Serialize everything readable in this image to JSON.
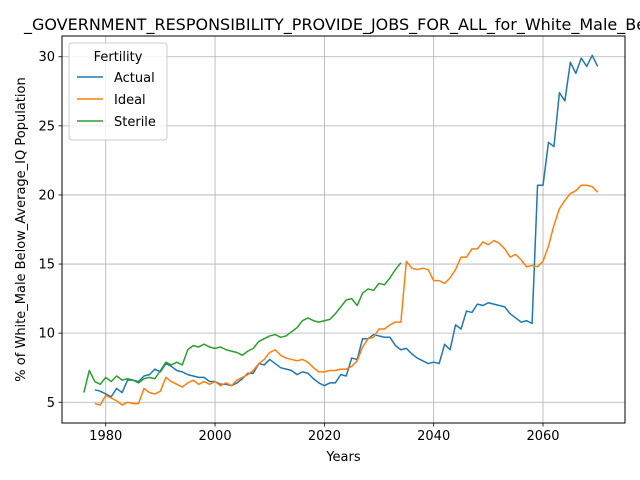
{
  "chart_data": {
    "type": "line",
    "title": "_GOVERNMENT_RESPONSIBILITY_PROVIDE_JOBS_FOR_ALL_for_White_Male_Be",
    "xlabel": "Years",
    "ylabel": "% of White_Male Below_Average_IQ Population",
    "xlim": [
      1972,
      2075
    ],
    "ylim": [
      3.5,
      31.5
    ],
    "xticks": [
      1980,
      2000,
      2020,
      2040,
      2060
    ],
    "yticks": [
      5,
      10,
      15,
      20,
      25,
      30
    ],
    "grid": true,
    "legend": {
      "title": "Fertility",
      "placement": "top-left"
    },
    "series": [
      {
        "name": "Actual",
        "color": "#1f77b4",
        "x": [
          1978,
          1979,
          1980,
          1981,
          1982,
          1983,
          1984,
          1985,
          1986,
          1987,
          1988,
          1989,
          1990,
          1991,
          1992,
          1993,
          1994,
          1995,
          1996,
          1997,
          1998,
          1999,
          2000,
          2001,
          2002,
          2003,
          2004,
          2005,
          2006,
          2007,
          2008,
          2009,
          2010,
          2011,
          2012,
          2013,
          2014,
          2015,
          2016,
          2017,
          2018,
          2019,
          2020,
          2021,
          2022,
          2023,
          2024,
          2025,
          2026,
          2027,
          2028,
          2029,
          2030,
          2031,
          2032,
          2033,
          2034,
          2035,
          2036,
          2037,
          2038,
          2039,
          2040,
          2041,
          2042,
          2043,
          2044,
          2045,
          2046,
          2047,
          2048,
          2049,
          2050,
          2051,
          2052,
          2053,
          2054,
          2055,
          2056,
          2057,
          2058,
          2059,
          2060,
          2061,
          2062,
          2063,
          2064,
          2065,
          2066,
          2067,
          2068,
          2069,
          2070
        ],
        "y": [
          5.9,
          5.8,
          5.6,
          5.4,
          6.0,
          5.7,
          6.6,
          6.6,
          6.5,
          6.9,
          7.0,
          7.4,
          7.2,
          7.8,
          7.6,
          7.3,
          7.2,
          7.0,
          6.9,
          6.8,
          6.8,
          6.5,
          6.5,
          6.3,
          6.3,
          6.2,
          6.4,
          6.7,
          7.1,
          7.1,
          7.8,
          7.7,
          8.1,
          7.8,
          7.5,
          7.4,
          7.3,
          7.0,
          7.2,
          7.1,
          6.7,
          6.4,
          6.2,
          6.4,
          6.4,
          7.0,
          6.9,
          8.2,
          8.1,
          9.6,
          9.6,
          9.9,
          9.8,
          9.7,
          9.7,
          9.1,
          8.8,
          8.9,
          8.5,
          8.2,
          8.0,
          7.8,
          7.9,
          7.8,
          9.2,
          8.8,
          10.6,
          10.3,
          11.6,
          11.5,
          12.1,
          12.0,
          12.2,
          12.1,
          12.0,
          11.9,
          11.4,
          11.1,
          10.8,
          10.9,
          10.7,
          20.7,
          20.7,
          23.8,
          23.5,
          27.4,
          26.8,
          29.6,
          28.8,
          29.9,
          29.3,
          30.1,
          29.3
        ]
      },
      {
        "name": "Ideal",
        "color": "#ff7f0e",
        "x": [
          1978,
          1979,
          1980,
          1981,
          1982,
          1983,
          1984,
          1985,
          1986,
          1987,
          1988,
          1989,
          1990,
          1991,
          1992,
          1993,
          1994,
          1995,
          1996,
          1997,
          1998,
          1999,
          2000,
          2001,
          2002,
          2003,
          2004,
          2005,
          2006,
          2007,
          2008,
          2009,
          2010,
          2011,
          2012,
          2013,
          2014,
          2015,
          2016,
          2017,
          2018,
          2019,
          2020,
          2021,
          2022,
          2023,
          2024,
          2025,
          2026,
          2027,
          2028,
          2029,
          2030,
          2031,
          2032,
          2033,
          2034,
          2035,
          2036,
          2037,
          2038,
          2039,
          2040,
          2041,
          2042,
          2043,
          2044,
          2045,
          2046,
          2047,
          2048,
          2049,
          2050,
          2051,
          2052,
          2053,
          2054,
          2055,
          2056,
          2057,
          2058,
          2059,
          2060,
          2061,
          2062,
          2063,
          2064,
          2065,
          2066,
          2067,
          2068,
          2069,
          2070
        ],
        "y": [
          4.9,
          4.8,
          5.5,
          5.3,
          5.1,
          4.8,
          5.0,
          4.9,
          4.9,
          6.0,
          5.7,
          5.6,
          5.8,
          6.8,
          6.5,
          6.3,
          6.1,
          6.4,
          6.6,
          6.3,
          6.5,
          6.3,
          6.5,
          6.2,
          6.4,
          6.2,
          6.6,
          6.8,
          7.0,
          7.3,
          7.8,
          8.1,
          8.6,
          8.8,
          8.4,
          8.2,
          8.1,
          8.0,
          8.1,
          7.9,
          7.5,
          7.2,
          7.2,
          7.3,
          7.3,
          7.4,
          7.4,
          7.6,
          8.0,
          9.0,
          9.6,
          9.7,
          10.3,
          10.3,
          10.6,
          10.8,
          10.8,
          15.2,
          14.7,
          14.6,
          14.7,
          14.6,
          13.8,
          13.8,
          13.6,
          14.0,
          14.6,
          15.5,
          15.5,
          16.1,
          16.1,
          16.6,
          16.4,
          16.7,
          16.5,
          16.1,
          15.5,
          15.7,
          15.3,
          14.8,
          14.9,
          14.8,
          15.2,
          16.3,
          17.8,
          19.0,
          19.6,
          20.1,
          20.3,
          20.7,
          20.7,
          20.6,
          20.2
        ]
      },
      {
        "name": "Sterile",
        "color": "#2ca02c",
        "x": [
          1976,
          1977,
          1978,
          1979,
          1980,
          1981,
          1982,
          1983,
          1984,
          1985,
          1986,
          1987,
          1988,
          1989,
          1990,
          1991,
          1992,
          1993,
          1994,
          1995,
          1996,
          1997,
          1998,
          1999,
          2000,
          2001,
          2002,
          2003,
          2004,
          2005,
          2006,
          2007,
          2008,
          2009,
          2010,
          2011,
          2012,
          2013,
          2014,
          2015,
          2016,
          2017,
          2018,
          2019,
          2020,
          2021,
          2022,
          2023,
          2024,
          2025,
          2026,
          2027,
          2028,
          2029,
          2030,
          2031,
          2032,
          2033,
          2034
        ],
        "y": [
          5.7,
          7.3,
          6.5,
          6.3,
          6.8,
          6.5,
          6.9,
          6.6,
          6.7,
          6.6,
          6.4,
          6.7,
          6.8,
          6.7,
          7.3,
          7.9,
          7.7,
          7.9,
          7.7,
          8.8,
          9.1,
          9.0,
          9.2,
          9.0,
          8.9,
          9.0,
          8.8,
          8.7,
          8.6,
          8.4,
          8.7,
          8.9,
          9.4,
          9.6,
          9.8,
          9.9,
          9.7,
          9.8,
          10.1,
          10.4,
          10.9,
          11.1,
          10.9,
          10.8,
          10.9,
          11.0,
          11.4,
          11.9,
          12.4,
          12.5,
          12.0,
          12.9,
          13.2,
          13.1,
          13.6,
          13.5,
          14.0,
          14.6,
          15.1
        ]
      }
    ]
  }
}
